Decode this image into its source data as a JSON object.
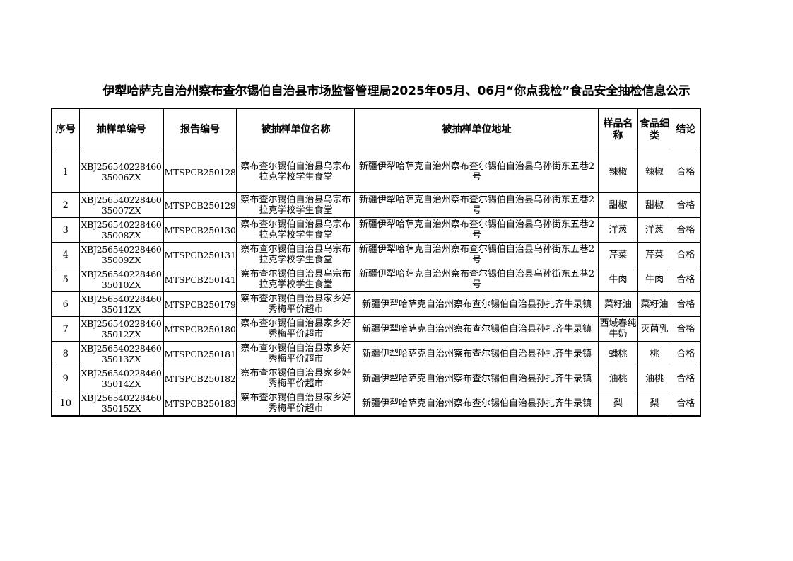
{
  "title": "伊犁哈萨克自治州察布查尔锡伯自治县市场监督管理局2025年05月、06月“你点我检”食品安全抽检信息公示",
  "table": {
    "headers": [
      "序号",
      "抽样单编号",
      "报告编号",
      "被抽样单位名称",
      "被抽样单位地址",
      "样品名称",
      "食品细类",
      "结论"
    ],
    "rows": [
      [
        "1",
        "XBJ25654022846035006ZX",
        "MTSPCB250128",
        "察布查尔锡伯自治县乌宗布拉克学校学生食堂",
        "新疆伊犁哈萨克自治州察布查尔锡伯自治县乌孙街东五巷2号",
        "辣椒",
        "辣椒",
        "合格"
      ],
      [
        "2",
        "XBJ25654022846035007ZX",
        "MTSPCB250129",
        "察布查尔锡伯自治县乌宗布拉克学校学生食堂",
        "新疆伊犁哈萨克自治州察布查尔锡伯自治县乌孙街东五巷2号",
        "甜椒",
        "甜椒",
        "合格"
      ],
      [
        "3",
        "XBJ25654022846035008ZX",
        "MTSPCB250130",
        "察布查尔锡伯自治县乌宗布拉克学校学生食堂",
        "新疆伊犁哈萨克自治州察布查尔锡伯自治县乌孙街东五巷2号",
        "洋葱",
        "洋葱",
        "合格"
      ],
      [
        "4",
        "XBJ25654022846035009ZX",
        "MTSPCB250131",
        "察布查尔锡伯自治县乌宗布拉克学校学生食堂",
        "新疆伊犁哈萨克自治州察布查尔锡伯自治县乌孙街东五巷2号",
        "芹菜",
        "芹菜",
        "合格"
      ],
      [
        "5",
        "XBJ25654022846035010ZX",
        "MTSPCB250141",
        "察布查尔锡伯自治县乌宗布拉克学校学生食堂",
        "新疆伊犁哈萨克自治州察布查尔锡伯自治县乌孙街东五巷2号",
        "牛肉",
        "牛肉",
        "合格"
      ],
      [
        "6",
        "XBJ25654022846035011ZX",
        "MTSPCB250179",
        "察布查尔锡伯自治县家乡好秀梅平价超市",
        "新疆伊犁哈萨克自治州察布查尔锡伯自治县孙扎齐牛录镇",
        "菜籽油",
        "菜籽油",
        "合格"
      ],
      [
        "7",
        "XBJ25654022846035012ZX",
        "MTSPCB250180",
        "察布查尔锡伯自治县家乡好秀梅平价超市",
        "新疆伊犁哈萨克自治州察布查尔锡伯自治县孙扎齐牛录镇",
        "西域春纯牛奶",
        "灭菌乳",
        "合格"
      ],
      [
        "8",
        "XBJ25654022846035013ZX",
        "MTSPCB250181",
        "察布查尔锡伯自治县家乡好秀梅平价超市",
        "新疆伊犁哈萨克自治州察布查尔锡伯自治县孙扎齐牛录镇",
        "蟠桃",
        "桃",
        "合格"
      ],
      [
        "9",
        "XBJ25654022846035014ZX",
        "MTSPCB250182",
        "察布查尔锡伯自治县家乡好秀梅平价超市",
        "新疆伊犁哈萨克自治州察布查尔锡伯自治县孙扎齐牛录镇",
        "油桃",
        "油桃",
        "合格"
      ],
      [
        "10",
        "XBJ25654022846035015ZX",
        "MTSPCB250183",
        "察布查尔锡伯自治县家乡好秀梅平价超市",
        "新疆伊犁哈萨克自治州察布查尔锡伯自治县孙扎齐牛录镇",
        "梨",
        "梨",
        "合格"
      ]
    ]
  }
}
